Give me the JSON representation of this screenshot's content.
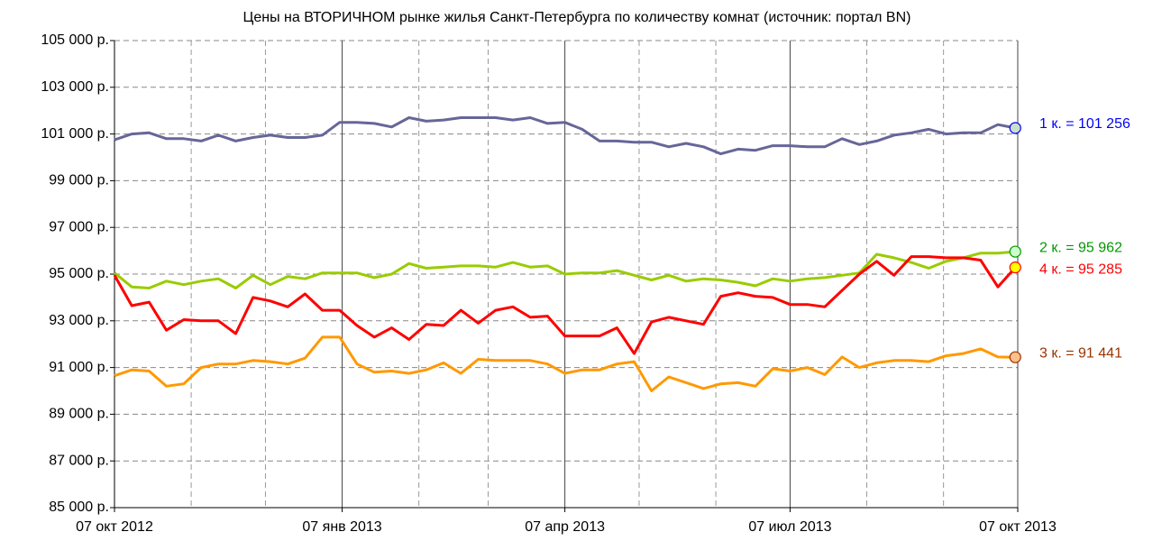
{
  "chart_data": {
    "type": "line",
    "title": "Цены на ВТОРИЧНОМ рынке жилья Санкт-Петербурга по количеству комнат (источник: портал BN)",
    "x": [
      "2012-10-07",
      "2012-10-14",
      "2012-10-21",
      "2012-10-28",
      "2012-11-04",
      "2012-11-11",
      "2012-11-18",
      "2012-11-25",
      "2012-12-02",
      "2012-12-09",
      "2012-12-16",
      "2012-12-23",
      "2012-12-30",
      "2013-01-06",
      "2013-01-13",
      "2013-01-20",
      "2013-01-27",
      "2013-02-03",
      "2013-02-10",
      "2013-02-17",
      "2013-02-24",
      "2013-03-03",
      "2013-03-10",
      "2013-03-17",
      "2013-03-24",
      "2013-03-31",
      "2013-04-07",
      "2013-04-14",
      "2013-04-21",
      "2013-04-28",
      "2013-05-05",
      "2013-05-12",
      "2013-05-19",
      "2013-05-26",
      "2013-06-02",
      "2013-06-09",
      "2013-06-16",
      "2013-06-23",
      "2013-06-30",
      "2013-07-07",
      "2013-07-14",
      "2013-07-21",
      "2013-07-28",
      "2013-08-04",
      "2013-08-11",
      "2013-08-18",
      "2013-08-25",
      "2013-09-01",
      "2013-09-08",
      "2013-09-15",
      "2013-09-22",
      "2013-09-29",
      "2013-10-06"
    ],
    "series": [
      {
        "name": "1 к.",
        "color": "#666699",
        "marker_fill": "#c8e0c8",
        "label_color": "#0000ff",
        "end_label": "1 к. = 101 256",
        "values": [
          100750,
          101000,
          101050,
          100800,
          100800,
          100700,
          100950,
          100700,
          100850,
          100950,
          100850,
          100850,
          100950,
          101500,
          101500,
          101450,
          101300,
          101700,
          101550,
          101600,
          101700,
          101700,
          101700,
          101600,
          101700,
          101450,
          101500,
          101200,
          100700,
          100700,
          100650,
          100650,
          100450,
          100600,
          100450,
          100150,
          100350,
          100300,
          100500,
          100500,
          100450,
          100450,
          100800,
          100550,
          100700,
          100950,
          101050,
          101200,
          101000,
          101050,
          101050,
          101400,
          101256
        ]
      },
      {
        "name": "2 к.",
        "color": "#99cc00",
        "marker_fill": "#ccffcc",
        "label_color": "#009900",
        "end_label": "2 к. = 95 962",
        "values": [
          95050,
          94450,
          94400,
          94700,
          94550,
          94700,
          94800,
          94400,
          94950,
          94550,
          94900,
          94800,
          95050,
          95050,
          95050,
          94850,
          95000,
          95450,
          95250,
          95300,
          95350,
          95350,
          95300,
          95500,
          95300,
          95350,
          95000,
          95050,
          95050,
          95150,
          94950,
          94750,
          94950,
          94700,
          94800,
          94750,
          94650,
          94500,
          94800,
          94700,
          94800,
          94850,
          94950,
          95050,
          95850,
          95700,
          95500,
          95250,
          95550,
          95700,
          95900,
          95900,
          95962
        ]
      },
      {
        "name": "3 к.",
        "color": "#ff9900",
        "marker_fill": "#fcc08a",
        "label_color": "#993300",
        "end_label": "3 к. = 91 441",
        "values": [
          90650,
          90900,
          90850,
          90200,
          90300,
          91000,
          91150,
          91150,
          91300,
          91250,
          91150,
          91400,
          92300,
          92300,
          91150,
          90800,
          90850,
          90750,
          90900,
          91200,
          90750,
          91350,
          91300,
          91300,
          91300,
          91150,
          90750,
          90900,
          90900,
          91150,
          91250,
          90000,
          90600,
          90350,
          90100,
          90300,
          90350,
          90200,
          90950,
          90850,
          91000,
          90700,
          91450,
          91000,
          91200,
          91300,
          91300,
          91250,
          91500,
          91600,
          91800,
          91450,
          91441
        ]
      },
      {
        "name": "4 к.",
        "color": "#ff0000",
        "marker_fill": "#ffff00",
        "label_color": "#ff0000",
        "end_label": "4 к. = 95 285",
        "values": [
          94950,
          93650,
          93800,
          92600,
          93050,
          93000,
          93000,
          92450,
          94000,
          93850,
          93600,
          94150,
          93450,
          93450,
          92800,
          92300,
          92700,
          92200,
          92850,
          92800,
          93450,
          92900,
          93450,
          93600,
          93150,
          93200,
          92350,
          92350,
          92350,
          92700,
          91600,
          92950,
          93150,
          93000,
          92850,
          94050,
          94200,
          94050,
          94000,
          93700,
          93700,
          93600,
          94300,
          95000,
          95550,
          94950,
          95750,
          95750,
          95700,
          95700,
          95600,
          94450,
          95285
        ]
      }
    ],
    "xlim": [
      "2012-10-07",
      "2013-10-07"
    ],
    "xticks": [
      {
        "value": "2012-10-07",
        "label": "07 окт 2012"
      },
      {
        "value": "2013-01-07",
        "label": "07 янв 2013"
      },
      {
        "value": "2013-04-07",
        "label": "07 апр 2013"
      },
      {
        "value": "2013-07-07",
        "label": "07 июл 2013"
      },
      {
        "value": "2013-10-07",
        "label": "07 окт 2013"
      }
    ],
    "xgrid_minor": [
      "2012-11-07",
      "2012-12-07",
      "2013-02-07",
      "2013-03-07",
      "2013-05-07",
      "2013-06-07",
      "2013-08-07",
      "2013-09-07"
    ],
    "ylim": [
      85000,
      105000
    ],
    "yticks": [
      {
        "value": 85000,
        "label": "85 000 р."
      },
      {
        "value": 87000,
        "label": "87 000 р."
      },
      {
        "value": 89000,
        "label": "89 000 р."
      },
      {
        "value": 91000,
        "label": "91 000 р."
      },
      {
        "value": 93000,
        "label": "93 000 р."
      },
      {
        "value": 95000,
        "label": "95 000 р."
      },
      {
        "value": 97000,
        "label": "97 000 р."
      },
      {
        "value": 99000,
        "label": "99 000 р."
      },
      {
        "value": 101000,
        "label": "101 000 р."
      },
      {
        "value": 103000,
        "label": "103 000 р."
      },
      {
        "value": 105000,
        "label": "105 000 р."
      }
    ],
    "grid": true
  }
}
